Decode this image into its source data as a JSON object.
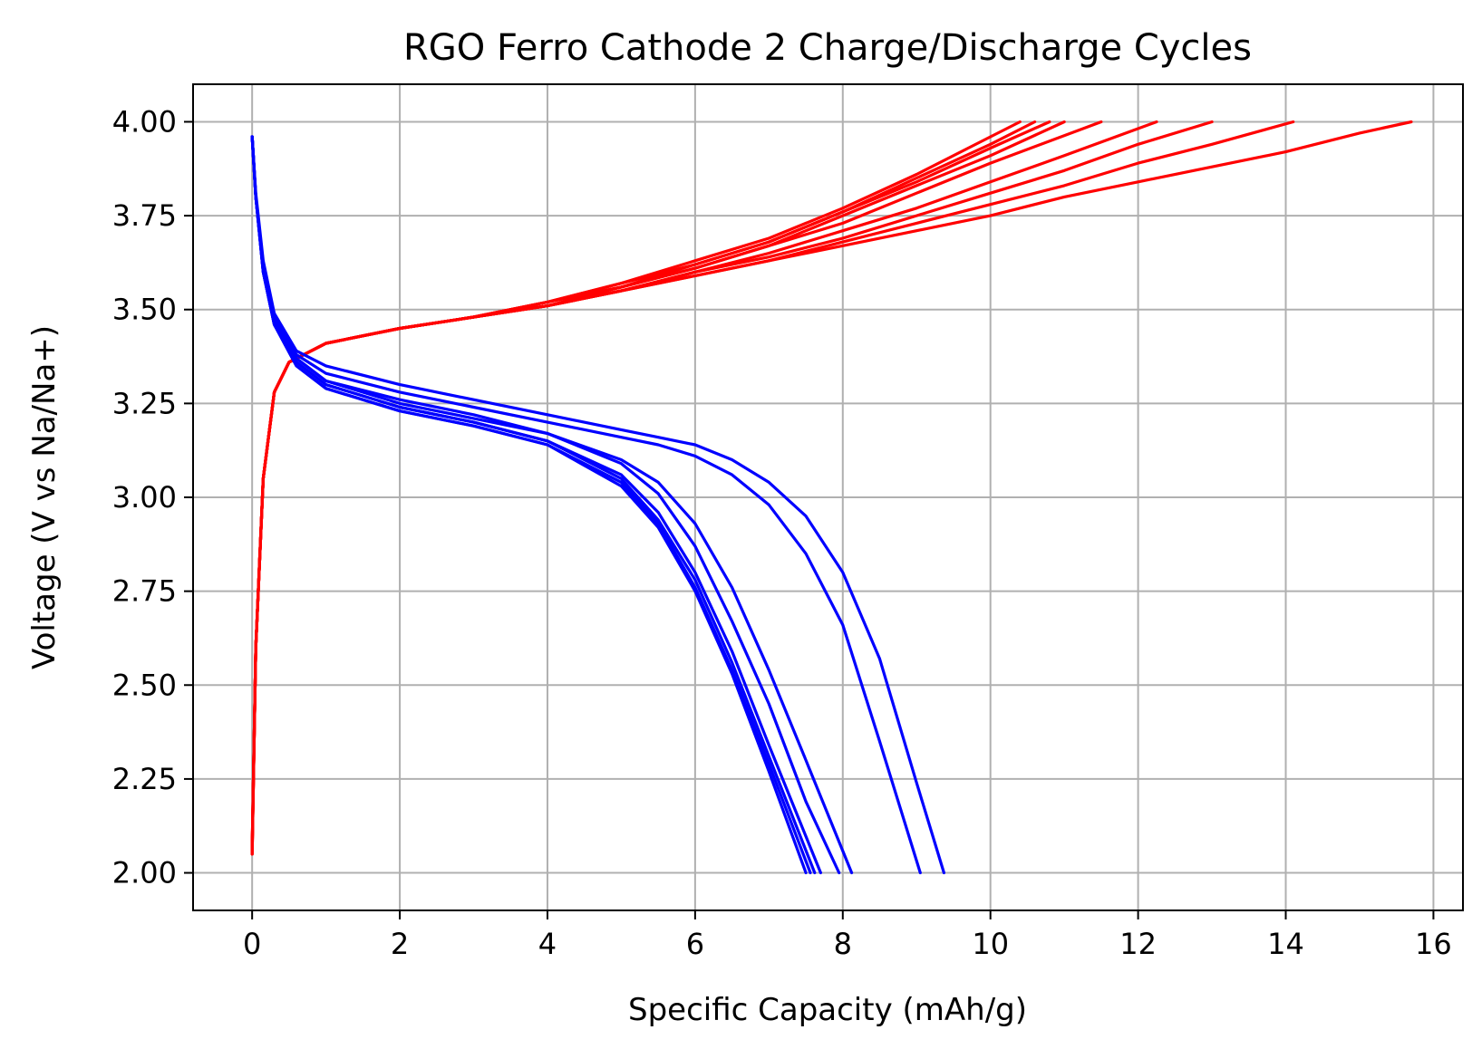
{
  "chart_data": {
    "type": "line",
    "title": "RGO Ferro Cathode 2 Charge/Discharge Cycles",
    "xlabel": "Specific Capacity (mAh/g)",
    "ylabel": "Voltage (V vs Na/Na+)",
    "xlim": [
      -0.8,
      16.4
    ],
    "ylim": [
      1.9,
      4.1
    ],
    "xticks": [
      0,
      2,
      4,
      6,
      8,
      10,
      12,
      14,
      16
    ],
    "yticks": [
      2.0,
      2.25,
      2.5,
      2.75,
      3.0,
      3.25,
      3.5,
      3.75,
      4.0
    ],
    "xtick_labels": [
      "0",
      "2",
      "4",
      "6",
      "8",
      "10",
      "12",
      "14",
      "16"
    ],
    "ytick_labels": [
      "2.00",
      "2.25",
      "2.50",
      "2.75",
      "3.00",
      "3.25",
      "3.50",
      "3.75",
      "4.00"
    ],
    "grid": true,
    "colors": {
      "charge": "#ff0000",
      "discharge": "#0000ff"
    },
    "series": [
      {
        "kind": "charge",
        "x": [
          0,
          0.05,
          0.15,
          0.3,
          0.5,
          1,
          2,
          3,
          4,
          5,
          6,
          7,
          8,
          9,
          10,
          10.4
        ],
        "y": [
          2.05,
          2.6,
          3.05,
          3.28,
          3.36,
          3.41,
          3.45,
          3.48,
          3.52,
          3.57,
          3.63,
          3.69,
          3.77,
          3.86,
          3.96,
          4.0
        ]
      },
      {
        "kind": "charge",
        "x": [
          0,
          0.05,
          0.15,
          0.3,
          0.5,
          1,
          2,
          3,
          4,
          5,
          6,
          7,
          8,
          9,
          10,
          10.6
        ],
        "y": [
          2.06,
          2.6,
          3.05,
          3.28,
          3.36,
          3.41,
          3.45,
          3.48,
          3.52,
          3.57,
          3.62,
          3.68,
          3.76,
          3.85,
          3.94,
          4.0
        ]
      },
      {
        "kind": "charge",
        "x": [
          0,
          0.05,
          0.15,
          0.3,
          0.5,
          1,
          2,
          3,
          4,
          5,
          6,
          7,
          8,
          9,
          10,
          10.8
        ],
        "y": [
          2.07,
          2.6,
          3.05,
          3.28,
          3.36,
          3.41,
          3.45,
          3.48,
          3.52,
          3.56,
          3.62,
          3.68,
          3.76,
          3.84,
          3.93,
          4.0
        ]
      },
      {
        "kind": "charge",
        "x": [
          0,
          0.05,
          0.15,
          0.3,
          0.5,
          1,
          2,
          3,
          4,
          5,
          6,
          7,
          8,
          9,
          10,
          11.0
        ],
        "y": [
          2.05,
          2.6,
          3.05,
          3.28,
          3.36,
          3.41,
          3.45,
          3.48,
          3.52,
          3.56,
          3.61,
          3.67,
          3.75,
          3.83,
          3.91,
          4.0
        ]
      },
      {
        "kind": "charge",
        "x": [
          0,
          0.05,
          0.15,
          0.3,
          0.5,
          1,
          2,
          3,
          4,
          5,
          6,
          7,
          8,
          9,
          10,
          11.5
        ],
        "y": [
          2.06,
          2.6,
          3.05,
          3.28,
          3.36,
          3.41,
          3.45,
          3.48,
          3.51,
          3.56,
          3.61,
          3.67,
          3.73,
          3.81,
          3.89,
          4.0
        ]
      },
      {
        "kind": "charge",
        "x": [
          0,
          0.05,
          0.15,
          0.3,
          0.5,
          1,
          2,
          3,
          4,
          5,
          6,
          7,
          8,
          9,
          10,
          11,
          12.25
        ],
        "y": [
          2.07,
          2.6,
          3.05,
          3.28,
          3.36,
          3.41,
          3.45,
          3.48,
          3.51,
          3.55,
          3.6,
          3.65,
          3.71,
          3.77,
          3.84,
          3.91,
          4.0
        ]
      },
      {
        "kind": "charge",
        "x": [
          0,
          0.05,
          0.15,
          0.3,
          0.5,
          1,
          2,
          3,
          4,
          5,
          6,
          7,
          8,
          9,
          10,
          11,
          12,
          13.0
        ],
        "y": [
          2.05,
          2.6,
          3.05,
          3.28,
          3.36,
          3.41,
          3.45,
          3.48,
          3.51,
          3.55,
          3.6,
          3.64,
          3.69,
          3.75,
          3.81,
          3.87,
          3.94,
          4.0
        ]
      },
      {
        "kind": "charge",
        "x": [
          0,
          0.05,
          0.15,
          0.3,
          0.5,
          1,
          2,
          3,
          4,
          5,
          6,
          7,
          8,
          9,
          10,
          11,
          12,
          13,
          14.1
        ],
        "y": [
          2.06,
          2.6,
          3.05,
          3.28,
          3.36,
          3.41,
          3.45,
          3.48,
          3.51,
          3.55,
          3.59,
          3.63,
          3.68,
          3.73,
          3.78,
          3.83,
          3.89,
          3.94,
          4.0
        ]
      },
      {
        "kind": "charge",
        "x": [
          0,
          0.05,
          0.15,
          0.3,
          0.5,
          1,
          2,
          3,
          4,
          5,
          6,
          7,
          8,
          9,
          10,
          11,
          12,
          13,
          14,
          15,
          15.7
        ],
        "y": [
          2.07,
          2.6,
          3.05,
          3.28,
          3.36,
          3.41,
          3.45,
          3.48,
          3.51,
          3.55,
          3.59,
          3.63,
          3.67,
          3.71,
          3.75,
          3.8,
          3.84,
          3.88,
          3.92,
          3.97,
          4.0
        ]
      },
      {
        "kind": "discharge",
        "x": [
          0,
          0.05,
          0.15,
          0.3,
          0.6,
          1,
          2,
          3,
          4,
          5,
          5.5,
          6,
          6.5,
          7,
          7.5
        ],
        "y": [
          3.96,
          3.8,
          3.6,
          3.46,
          3.35,
          3.29,
          3.23,
          3.19,
          3.14,
          3.03,
          2.92,
          2.75,
          2.53,
          2.27,
          2.0
        ]
      },
      {
        "kind": "discharge",
        "x": [
          0,
          0.05,
          0.15,
          0.3,
          0.6,
          1,
          2,
          3,
          4,
          5,
          5.5,
          6,
          6.5,
          7,
          7.56
        ],
        "y": [
          3.96,
          3.8,
          3.6,
          3.46,
          3.35,
          3.29,
          3.23,
          3.19,
          3.14,
          3.04,
          2.93,
          2.76,
          2.54,
          2.29,
          2.0
        ]
      },
      {
        "kind": "discharge",
        "x": [
          0,
          0.05,
          0.15,
          0.3,
          0.6,
          1,
          2,
          3,
          4,
          5,
          5.5,
          6,
          6.5,
          7,
          7.62
        ],
        "y": [
          3.96,
          3.8,
          3.6,
          3.46,
          3.36,
          3.3,
          3.24,
          3.2,
          3.15,
          3.05,
          2.94,
          2.78,
          2.56,
          2.31,
          2.0
        ]
      },
      {
        "kind": "discharge",
        "x": [
          0,
          0.05,
          0.15,
          0.3,
          0.6,
          1,
          2,
          3,
          4,
          5,
          5.5,
          6,
          6.5,
          7,
          7.7
        ],
        "y": [
          3.96,
          3.8,
          3.6,
          3.46,
          3.36,
          3.3,
          3.24,
          3.2,
          3.15,
          3.06,
          2.96,
          2.8,
          2.59,
          2.34,
          2.0
        ]
      },
      {
        "kind": "discharge",
        "x": [
          0,
          0.05,
          0.15,
          0.3,
          0.6,
          1,
          2,
          3,
          4,
          5,
          5.5,
          6,
          6.5,
          7,
          7.5,
          7.95
        ],
        "y": [
          3.96,
          3.8,
          3.61,
          3.47,
          3.37,
          3.31,
          3.25,
          3.21,
          3.17,
          3.09,
          3.01,
          2.87,
          2.67,
          2.45,
          2.19,
          2.0
        ]
      },
      {
        "kind": "discharge",
        "x": [
          0,
          0.05,
          0.15,
          0.3,
          0.6,
          1,
          2,
          3,
          4,
          5,
          5.5,
          6,
          6.5,
          7,
          7.5,
          8.12
        ],
        "y": [
          3.96,
          3.8,
          3.61,
          3.47,
          3.37,
          3.31,
          3.26,
          3.22,
          3.17,
          3.1,
          3.04,
          2.93,
          2.76,
          2.54,
          2.3,
          2.0
        ]
      },
      {
        "kind": "discharge",
        "x": [
          0,
          0.05,
          0.15,
          0.3,
          0.6,
          1,
          2,
          3,
          4,
          5,
          5.5,
          6,
          6.5,
          7,
          7.5,
          8,
          8.5,
          9.05
        ],
        "y": [
          3.96,
          3.8,
          3.62,
          3.48,
          3.38,
          3.33,
          3.28,
          3.24,
          3.2,
          3.16,
          3.14,
          3.11,
          3.06,
          2.98,
          2.85,
          2.66,
          2.35,
          2.0
        ]
      },
      {
        "kind": "discharge",
        "x": [
          0,
          0.05,
          0.15,
          0.3,
          0.6,
          1,
          2,
          3,
          4,
          5,
          5.5,
          6,
          6.5,
          7,
          7.5,
          8,
          8.5,
          9,
          9.37
        ],
        "y": [
          3.96,
          3.81,
          3.63,
          3.49,
          3.39,
          3.35,
          3.3,
          3.26,
          3.22,
          3.18,
          3.16,
          3.14,
          3.1,
          3.04,
          2.95,
          2.8,
          2.57,
          2.24,
          2.0
        ]
      }
    ]
  }
}
